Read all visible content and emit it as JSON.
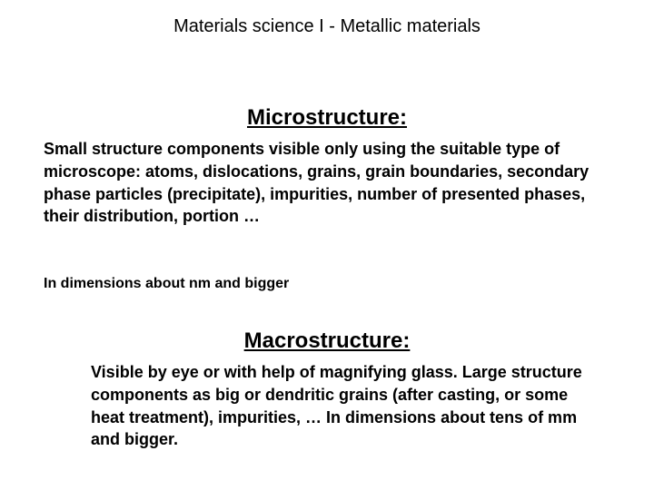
{
  "slide": {
    "title": "Materials science I - Metallic materials",
    "sections": {
      "micro": {
        "heading": "Microstructure:",
        "body": "Small structure components visible only using the suitable type of microscope:\natoms, dislocations, grains, grain boundaries, secondary phase particles (precipitate), impurities, number of presented phases, their distribution, portion …",
        "note": "In dimensions about nm and bigger"
      },
      "macro": {
        "heading": "Macrostructure:",
        "body": "Visible by eye or with help of magnifying glass.\nLarge structure components as big or dendritic grains (after casting, or some heat treatment), impurities, …\nIn dimensions about tens of mm and bigger."
      }
    }
  },
  "style": {
    "background_color": "#ffffff",
    "text_color": "#000000",
    "font_family": "Arial",
    "title_fontsize": 20,
    "heading_fontsize": 24,
    "body_fontsize": 18,
    "note_fontsize": 16
  }
}
